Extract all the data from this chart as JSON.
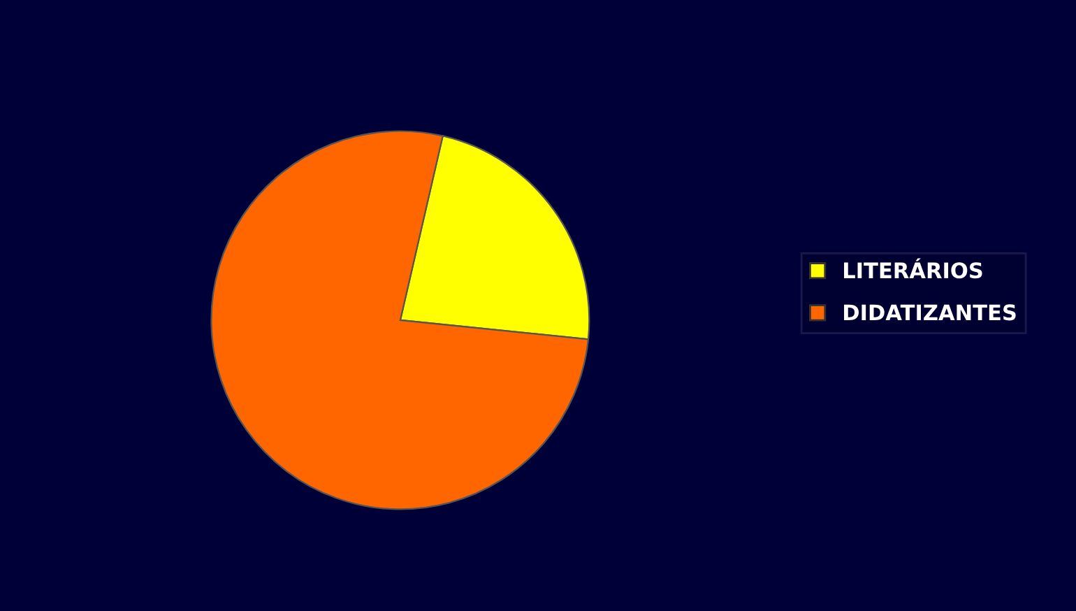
{
  "chart_data": {
    "type": "pie",
    "categories": [
      "LITERÁRIOS",
      "DIDATIZANTES"
    ],
    "values": [
      23,
      77
    ],
    "colors": [
      "#ffff00",
      "#ff6600"
    ],
    "legend": "right"
  }
}
